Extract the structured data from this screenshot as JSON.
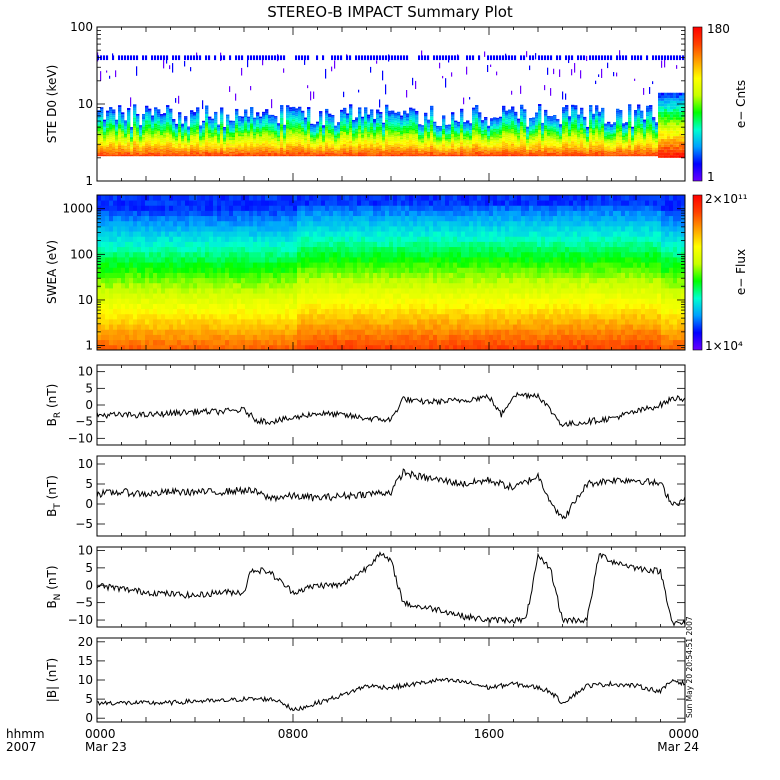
{
  "title": "STEREO-B IMPACT Summary Plot",
  "timestamp": "Sun May 20 20:54:51 2007",
  "x_axis": {
    "row1_label": "hhmm",
    "row2_label": "2007",
    "ticks": [
      {
        "t": 0,
        "label": "0000",
        "date": "Mar 23"
      },
      {
        "t": 8,
        "label": "0800",
        "date": ""
      },
      {
        "t": 16,
        "label": "1600",
        "date": ""
      },
      {
        "t": 24,
        "label": "0000",
        "date": "Mar 24"
      }
    ]
  },
  "colors": {
    "line": "#000000",
    "spectrogram_scale": [
      "#6a00ff",
      "#0000ff",
      "#00a0ff",
      "#00ffd0",
      "#00ff00",
      "#c8ff00",
      "#ffff00",
      "#ffa000",
      "#ff4000",
      "#ff0000"
    ]
  },
  "chart_data": [
    {
      "type": "heatmap",
      "ylabel": "STE D0 (keV)",
      "yscale": "log",
      "ylim": [
        1,
        100
      ],
      "yticks": [
        {
          "v": 1,
          "label": "1"
        },
        {
          "v": 10,
          "label": "10"
        },
        {
          "v": 100,
          "label": "100"
        }
      ],
      "colorbar": {
        "label": "e− Cnts",
        "min_label": "1",
        "max_label": "180"
      },
      "description_bands_keV": {
        "core_low": 2,
        "core_high": 4,
        "noise_line": 40
      }
    },
    {
      "type": "heatmap",
      "ylabel": "SWEA (eV)",
      "yscale": "log",
      "ylim": [
        0.8,
        2000
      ],
      "yticks": [
        {
          "v": 1,
          "label": "1"
        },
        {
          "v": 10,
          "label": "10"
        },
        {
          "v": 100,
          "label": "100"
        },
        {
          "v": 1000,
          "label": "1000"
        }
      ],
      "colorbar": {
        "label": "e− Flux",
        "min_label": "1×10⁴",
        "max_label": "2×10¹¹"
      }
    },
    {
      "type": "line",
      "ylabel_main": "B",
      "ylabel_sub": "R",
      "ylabel_unit": "(nT)",
      "ylim": [
        -12,
        12
      ],
      "yticks": [
        {
          "v": -10,
          "label": "−10"
        },
        {
          "v": -5,
          "label": "−5"
        },
        {
          "v": 0,
          "label": "0"
        },
        {
          "v": 5,
          "label": "5"
        },
        {
          "v": 10,
          "label": "10"
        }
      ],
      "x": [
        0,
        1,
        2,
        3,
        4,
        5,
        6,
        6.5,
        7,
        8,
        8.5,
        9,
        10,
        11,
        12,
        12.5,
        13,
        14,
        15,
        16,
        16.5,
        17,
        18,
        19,
        20,
        21,
        22,
        23,
        23.5,
        24
      ],
      "values": [
        -3,
        -3,
        -3,
        -2.5,
        -2,
        -2,
        -1.5,
        -4.5,
        -5,
        -4,
        -3,
        -2.5,
        -3,
        -4,
        -4.5,
        2,
        1,
        1,
        1.5,
        2.5,
        -3,
        3,
        3,
        -6,
        -5,
        -4,
        -2,
        0,
        2,
        2
      ]
    },
    {
      "type": "line",
      "ylabel_main": "B",
      "ylabel_sub": "T",
      "ylabel_unit": "(nT)",
      "ylim": [
        -8,
        12
      ],
      "yticks": [
        {
          "v": -5,
          "label": "−5"
        },
        {
          "v": 0,
          "label": "0"
        },
        {
          "v": 5,
          "label": "5"
        },
        {
          "v": 10,
          "label": "10"
        }
      ],
      "x": [
        0,
        1,
        2,
        3,
        4,
        5,
        6,
        6.5,
        7,
        8,
        9,
        10,
        11,
        12,
        12.5,
        13,
        14,
        15,
        16,
        17,
        18,
        18.5,
        19,
        20,
        21,
        22,
        23,
        23.5,
        24
      ],
      "values": [
        2.5,
        3,
        2.5,
        3,
        3,
        3,
        3.5,
        3,
        1.5,
        2,
        1.5,
        2,
        2.5,
        3,
        8,
        7,
        6,
        5,
        6,
        4,
        7,
        1,
        -4,
        5,
        6,
        6,
        5,
        0,
        1
      ]
    },
    {
      "type": "line",
      "ylabel_main": "B",
      "ylabel_sub": "N",
      "ylabel_unit": "(nT)",
      "ylim": [
        -12,
        11
      ],
      "yticks": [
        {
          "v": -10,
          "label": "−10"
        },
        {
          "v": -5,
          "label": "−5"
        },
        {
          "v": 0,
          "label": "0"
        },
        {
          "v": 5,
          "label": "5"
        },
        {
          "v": 10,
          "label": "10"
        }
      ],
      "x": [
        0,
        1,
        2,
        3,
        4,
        5,
        6,
        6.3,
        7,
        8,
        9,
        10,
        11,
        11.5,
        12,
        12.5,
        13,
        14,
        15,
        16,
        17.5,
        18,
        18.5,
        19,
        20,
        20.5,
        21,
        22,
        23,
        23.5,
        24
      ],
      "values": [
        0,
        -1,
        -2,
        -2.5,
        -3,
        -2,
        -2,
        4.5,
        4,
        -2,
        0,
        0,
        5,
        9,
        7,
        -5,
        -6,
        -7,
        -9,
        -10,
        -10,
        8,
        5,
        -10,
        -10,
        9,
        7,
        5,
        4,
        -11,
        -11
      ]
    },
    {
      "type": "line",
      "ylabel_main": "|B|",
      "ylabel_sub": "",
      "ylabel_unit": "(nT)",
      "ylim": [
        -1,
        21
      ],
      "yticks": [
        {
          "v": 0,
          "label": "0"
        },
        {
          "v": 5,
          "label": "5"
        },
        {
          "v": 10,
          "label": "10"
        },
        {
          "v": 15,
          "label": "15"
        },
        {
          "v": 20,
          "label": "20"
        }
      ],
      "x": [
        0,
        1,
        2,
        3,
        4,
        5,
        6,
        7,
        7.5,
        8,
        9,
        10,
        11,
        12,
        13,
        14,
        15,
        16,
        17,
        18,
        18.5,
        19,
        20,
        21,
        22,
        23,
        23.5,
        24
      ],
      "values": [
        4,
        4,
        4,
        4,
        4.5,
        4.5,
        5,
        5,
        4.5,
        2,
        4,
        6,
        8.5,
        8,
        9,
        10,
        9.5,
        8,
        9,
        8,
        7,
        4,
        8.5,
        9,
        8.5,
        7,
        10,
        9
      ]
    }
  ]
}
